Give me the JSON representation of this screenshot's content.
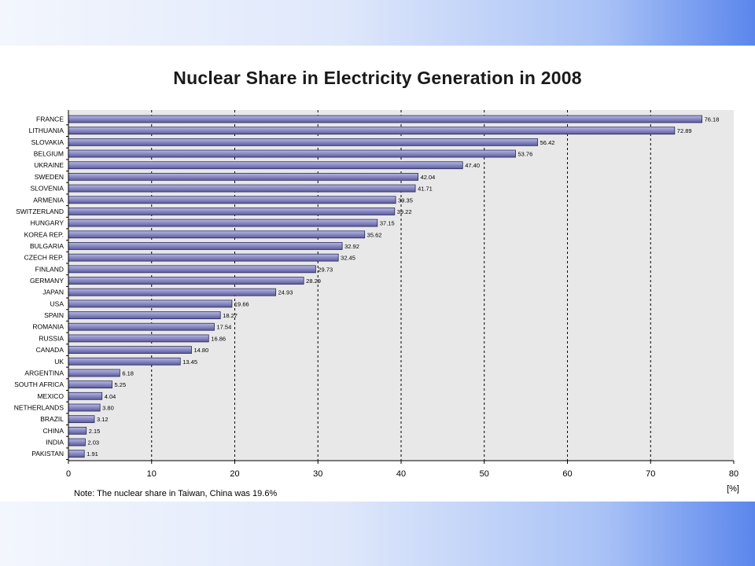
{
  "chart_data": {
    "type": "bar",
    "orientation": "horizontal",
    "title": "Nuclear Share in Electricity Generation in 2008",
    "categories": [
      "FRANCE",
      "LITHUANIA",
      "SLOVAKIA",
      "BELGIUM",
      "UKRAINE",
      "SWEDEN",
      "SLOVENIA",
      "ARMENIA",
      "SWITZERLAND",
      "HUNGARY",
      "KOREA REP.",
      "BULGARIA",
      "CZECH REP.",
      "FINLAND",
      "GERMANY",
      "JAPAN",
      "USA",
      "SPAIN",
      "ROMANIA",
      "RUSSIA",
      "CANADA",
      "UK",
      "ARGENTINA",
      "SOUTH AFRICA",
      "MEXICO",
      "NETHERLANDS",
      "BRAZIL",
      "CHINA",
      "INDIA",
      "PAKISTAN"
    ],
    "values": [
      76.18,
      72.89,
      56.42,
      53.76,
      47.4,
      42.04,
      41.71,
      39.35,
      39.22,
      37.15,
      35.62,
      32.92,
      32.45,
      29.73,
      28.29,
      24.93,
      19.66,
      18.27,
      17.54,
      16.86,
      14.8,
      13.45,
      6.18,
      5.25,
      4.04,
      3.8,
      3.12,
      2.15,
      2.03,
      1.91
    ],
    "value_labels": [
      "76.18",
      "72.89",
      "56.42",
      "53.76",
      "47.40",
      "42.04",
      "41.71",
      "39.35",
      "39.22",
      "37.15",
      "35.62",
      "32.92",
      "32.45",
      "29.73",
      "28.29",
      "24.93",
      "19.66",
      "18.27",
      "17.54",
      "16.86",
      "14.80",
      "13.45",
      "6.18",
      "5.25",
      "4.04",
      "3.80",
      "3.12",
      "2.15",
      "2.03",
      "1.91"
    ],
    "xticks": [
      "0",
      "10",
      "20",
      "30",
      "40",
      "50",
      "60",
      "70",
      "80"
    ],
    "xlim": [
      0,
      80
    ],
    "xlabel": "[%]",
    "ylabel": "",
    "grid": "vertical dashed",
    "note": "Note: The nuclear share in Taiwan, China was 19.6%",
    "colors": {
      "bar": "#5a5a9e",
      "bar_highlight": "#b8b8e4",
      "plot_background": "#e8e8e8",
      "grid": "#000000"
    }
  }
}
